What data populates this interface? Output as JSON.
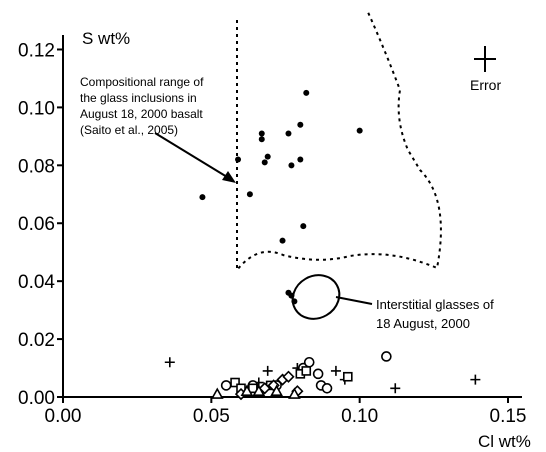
{
  "chart_data": {
    "type": "scatter",
    "title": "",
    "xlabel": "Cl wt%",
    "ylabel": "S wt%",
    "xlim": [
      0.0,
      0.15
    ],
    "ylim": [
      0.0,
      0.125
    ],
    "x_ticks": [
      "0.00",
      "0.05",
      "0.10",
      "0.15"
    ],
    "y_ticks": [
      "0.00",
      "0.02",
      "0.04",
      "0.06",
      "0.08",
      "0.10",
      "0.12"
    ],
    "grid": false,
    "legend": "none",
    "series": [
      {
        "marker": "filled-dot",
        "points": [
          [
            0.047,
            0.069
          ],
          [
            0.059,
            0.082
          ],
          [
            0.063,
            0.07
          ],
          [
            0.067,
            0.091
          ],
          [
            0.067,
            0.089
          ],
          [
            0.068,
            0.081
          ],
          [
            0.069,
            0.083
          ],
          [
            0.074,
            0.054
          ],
          [
            0.076,
            0.091
          ],
          [
            0.077,
            0.08
          ],
          [
            0.08,
            0.082
          ],
          [
            0.08,
            0.094
          ],
          [
            0.082,
            0.105
          ],
          [
            0.081,
            0.059
          ],
          [
            0.1,
            0.092
          ],
          [
            0.076,
            0.036
          ],
          [
            0.077,
            0.035
          ],
          [
            0.078,
            0.033
          ]
        ]
      },
      {
        "marker": "plus",
        "points": [
          [
            0.036,
            0.012
          ],
          [
            0.066,
            0.005
          ],
          [
            0.069,
            0.009
          ],
          [
            0.079,
            0.01
          ],
          [
            0.092,
            0.009
          ],
          [
            0.095,
            0.006
          ],
          [
            0.112,
            0.003
          ],
          [
            0.139,
            0.006
          ]
        ]
      },
      {
        "marker": "open-circle",
        "points": [
          [
            0.055,
            0.004
          ],
          [
            0.064,
            0.004
          ],
          [
            0.072,
            0.004
          ],
          [
            0.081,
            0.01
          ],
          [
            0.083,
            0.012
          ],
          [
            0.086,
            0.008
          ],
          [
            0.087,
            0.004
          ],
          [
            0.089,
            0.003
          ],
          [
            0.109,
            0.014
          ]
        ]
      },
      {
        "marker": "open-square",
        "points": [
          [
            0.058,
            0.005
          ],
          [
            0.06,
            0.003
          ],
          [
            0.064,
            0.003
          ],
          [
            0.07,
            0.004
          ],
          [
            0.08,
            0.008
          ],
          [
            0.082,
            0.009
          ],
          [
            0.096,
            0.007
          ]
        ]
      },
      {
        "marker": "open-diamond",
        "points": [
          [
            0.06,
            0.001
          ],
          [
            0.068,
            0.003
          ],
          [
            0.071,
            0.004
          ],
          [
            0.074,
            0.006
          ],
          [
            0.076,
            0.007
          ],
          [
            0.079,
            0.002
          ]
        ]
      },
      {
        "marker": "open-triangle",
        "points": [
          [
            0.052,
            0.001
          ],
          [
            0.062,
            0.002
          ],
          [
            0.066,
            0.002
          ],
          [
            0.072,
            0.002
          ],
          [
            0.078,
            0.001
          ]
        ]
      }
    ],
    "annotations": {
      "glass_inclusions": [
        "Compositional range of",
        "the glass inclusions in",
        "August 18, 2000 basalt",
        "(Saito et al., 2005)"
      ],
      "interstitial": [
        "Interstitial glasses  of",
        "18 August, 2000"
      ],
      "error_label": "Error"
    }
  }
}
